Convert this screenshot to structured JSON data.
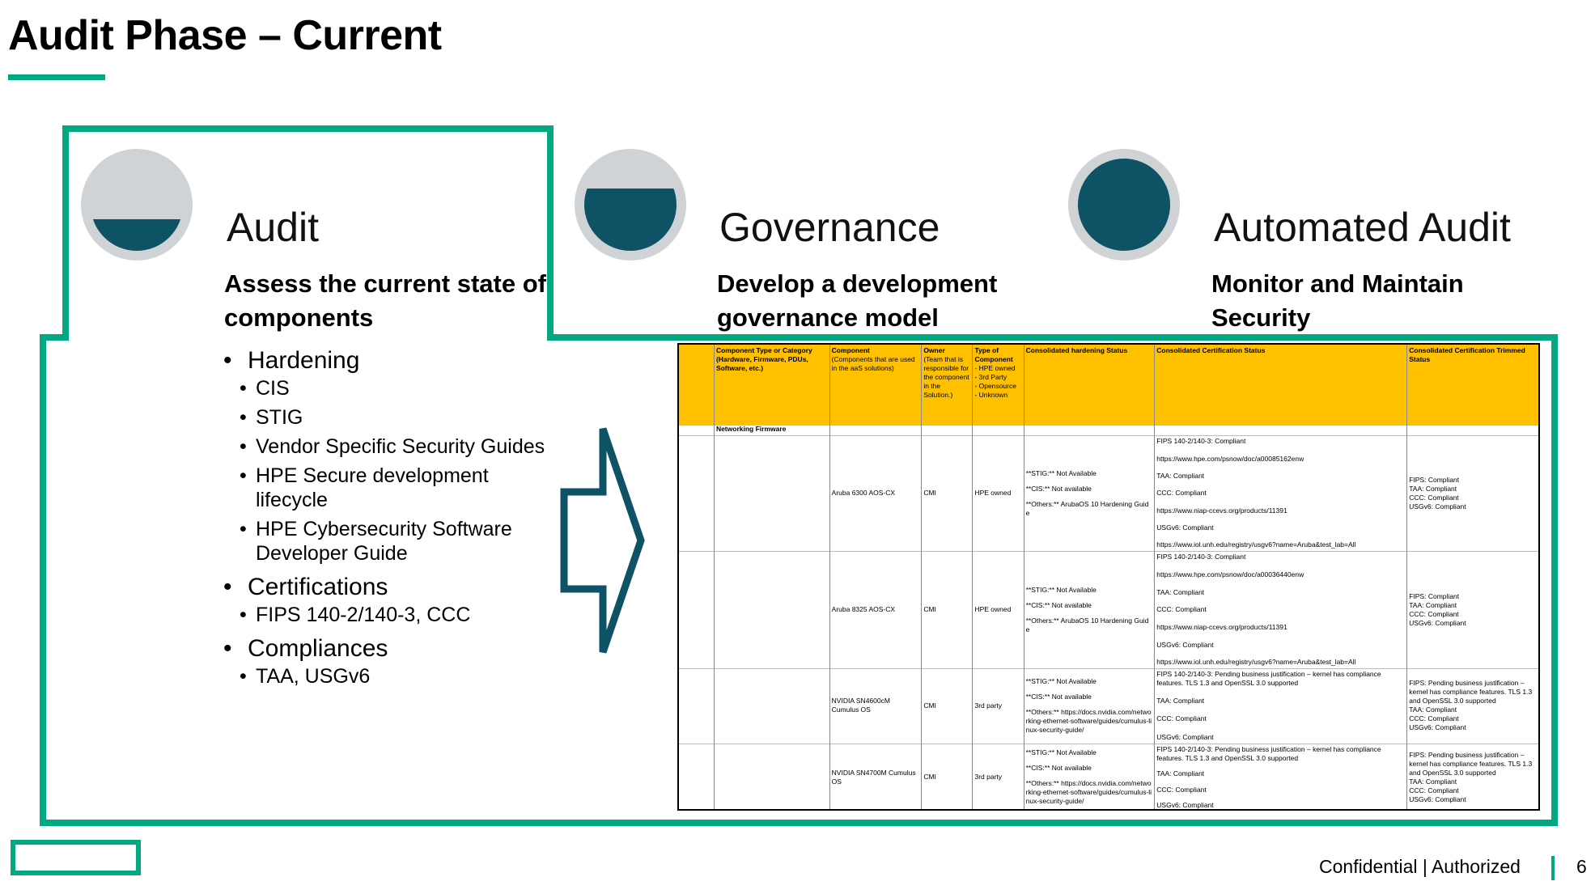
{
  "header": {
    "title": "Audit Phase – Current"
  },
  "phases": [
    {
      "title": "Audit",
      "subtitle": "Assess the current state of components"
    },
    {
      "title": "Governance",
      "subtitle": "Develop a development governance model"
    },
    {
      "title": "Automated Audit",
      "subtitle": "Monitor and Maintain Security"
    }
  ],
  "audit_list": [
    {
      "text": "Hardening",
      "items": [
        "CIS",
        "STIG",
        "Vendor Specific Security Guides",
        "HPE Secure development lifecycle",
        "HPE Cybersecurity Software Developer Guide"
      ]
    },
    {
      "text": "Certifications",
      "items": [
        "FIPS 140-2/140-3, CCC"
      ]
    },
    {
      "text": "Compliances",
      "items": [
        "TAA, USGv6"
      ]
    }
  ],
  "table": {
    "headers": [
      {
        "title": "Component Type or Category (Hardware, Firmware, PDUs, Software, etc.)"
      },
      {
        "title": "Component",
        "note": [
          "(Components that are used in the aaS solutions)"
        ]
      },
      {
        "title": "Owner",
        "note": [
          "(Team that is responsible for the component in the Solution.)"
        ]
      },
      {
        "title": "Type of Component",
        "note": [
          "- HPE owned",
          "- 3rd Party",
          "- Opensource",
          "- Unknown"
        ]
      },
      {
        "title": "Consolidated hardening Status"
      },
      {
        "title": "Consolidated Certification Status"
      },
      {
        "title": "Consolidated Certification Trimmed Status"
      }
    ],
    "group": "Networking Firmware",
    "rows": [
      {
        "component": "Aruba 6300 AOS-CX",
        "owner": "CMI",
        "type": "HPE owned",
        "hardening": [
          "**STIG:** Not Available",
          "**CIS:** Not available",
          "**Others:** ArubaOS 10 Hardening Guide"
        ],
        "certification": [
          "FIPS 140-2/140-3: Compliant",
          "https://www.hpe.com/psnow/doc/a00085162enw",
          "TAA: Compliant",
          "CCC: Compliant",
          "https://www.niap-ccevs.org/products/11391",
          "USGv6: Compliant",
          "https://www.iol.unh.edu/registry/usgv6?name=Aruba&test_lab=All"
        ],
        "trimmed": [
          "FIPS: Compliant",
          "TAA: Compliant",
          "CCC: Compliant",
          "USGv6: Compliant"
        ]
      },
      {
        "component": "Aruba 8325 AOS-CX",
        "owner": "CMI",
        "type": "HPE owned",
        "hardening": [
          "**STIG:** Not Available",
          "**CIS:** Not available",
          "**Others:** ArubaOS 10 Hardening Guide"
        ],
        "certification": [
          "FIPS 140-2/140-3: Compliant",
          "https://www.hpe.com/psnow/doc/a00036440enw",
          "TAA: Compliant",
          "CCC: Compliant",
          "https://www.niap-ccevs.org/products/11391",
          "USGv6: Compliant",
          "https://www.iol.unh.edu/registry/usgv6?name=Aruba&test_lab=All"
        ],
        "trimmed": [
          "FIPS: Compliant",
          "TAA: Compliant",
          "CCC: Compliant",
          "USGv6: Compliant"
        ]
      },
      {
        "component": "NVIDIA SN4600cM Cumulus OS",
        "owner": "CMI",
        "type": "3rd party",
        "hardening": [
          "**STIG:** Not Available",
          "**CIS:** Not available",
          "**Others:** https://docs.nvidia.com/networking-ethernet-software/guides/cumulus-linux-security-guide/"
        ],
        "certification": [
          "FIPS 140-2/140-3: Pending business justification – kernel has compliance features. TLS 1.3 and OpenSSL 3.0 supported",
          "TAA: Compliant",
          "CCC: Compliant",
          "USGv6: Compliant"
        ],
        "trimmed": [
          "FIPS: Pending business justification – kernel has compliance features. TLS 1.3 and OpenSSL 3.0 supported",
          "TAA: Compliant",
          "CCC: Compliant",
          "USGv6: Compliant"
        ]
      },
      {
        "component": "NVIDIA SN4700M Cumulus OS",
        "owner": "CMI",
        "type": "3rd party",
        "hardening": [
          "**STIG:** Not Available",
          "**CIS:** Not available",
          "**Others:** https://docs.nvidia.com/networking-ethernet-software/guides/cumulus-linux-security-guide/"
        ],
        "certification": [
          "FIPS 140-2/140-3: Pending business justification – kernel has compliance features. TLS 1.3 and OpenSSL 3.0 supported",
          "TAA: Compliant",
          "CCC: Compliant",
          "USGv6: Compliant"
        ],
        "trimmed": [
          "FIPS: Pending business justification – kernel has compliance features. TLS 1.3 and OpenSSL 3.0 supported",
          "TAA: Compliant",
          "CCC: Compliant",
          "USGv6: Compliant"
        ]
      }
    ]
  },
  "footer": {
    "label": "Confidential | Authorized",
    "page": "6"
  }
}
